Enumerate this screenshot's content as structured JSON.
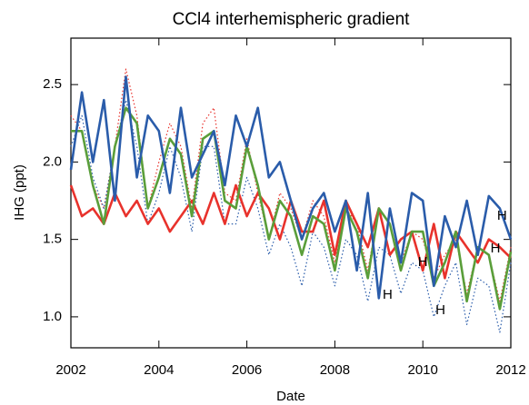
{
  "chart_data": {
    "type": "line",
    "title": "CCl4 interhemispheric  gradient",
    "xlabel": "Date",
    "ylabel": "IHG (ppt)",
    "xlim": [
      2002,
      2012
    ],
    "xticks": [
      2002,
      2004,
      2006,
      2008,
      2010,
      2012
    ],
    "ylim": [
      0.8,
      2.8
    ],
    "yticks": [
      {
        "value": 1,
        "label": "1.0"
      },
      {
        "value": 1.5,
        "label": "1.5"
      },
      {
        "value": 2,
        "label": "2.0"
      },
      {
        "value": 2.5,
        "label": "2.5"
      }
    ],
    "x": [
      2002,
      2002.25,
      2002.5,
      2002.75,
      2003,
      2003.25,
      2003.5,
      2003.75,
      2004,
      2004.25,
      2004.5,
      2004.75,
      2005,
      2005.25,
      2005.5,
      2005.75,
      2006,
      2006.25,
      2006.5,
      2006.75,
      2007,
      2007.25,
      2007.5,
      2007.75,
      2008,
      2008.25,
      2008.5,
      2008.75,
      2009,
      2009.25,
      2009.5,
      2009.75,
      2010,
      2010.25,
      2010.5,
      2010.75,
      2011,
      2011.25,
      2011.5,
      2011.75,
      2012
    ],
    "series": [
      {
        "color": "#e8322c",
        "dashed": true,
        "values": [
          2.3,
          2.2,
          1.85,
          1.7,
          2.1,
          2.6,
          2.3,
          1.7,
          2.0,
          2.25,
          2.1,
          1.7,
          2.25,
          2.35,
          1.8,
          1.75,
          2.15,
          1.8,
          1.5,
          1.8,
          1.7,
          1.5,
          1.75,
          1.65,
          1.35,
          1.7,
          1.6,
          1.3,
          1.7,
          1.6,
          1.35,
          1.55,
          1.5,
          1.25,
          1.4,
          1.5,
          1.15,
          1.45,
          1.4,
          1.1,
          1.45
        ]
      },
      {
        "color": "#2a5caa",
        "dashed": true,
        "values": [
          2.1,
          2.3,
          1.9,
          1.7,
          2.1,
          2.4,
          2.1,
          1.6,
          1.8,
          2.1,
          1.9,
          1.55,
          2.1,
          2.1,
          1.6,
          1.6,
          1.9,
          1.7,
          1.4,
          1.6,
          1.45,
          1.2,
          1.55,
          1.45,
          1.2,
          1.5,
          1.4,
          1.1,
          1.45,
          1.4,
          1.15,
          1.35,
          1.3,
          1.0,
          1.2,
          1.35,
          0.95,
          1.25,
          1.2,
          0.9,
          1.35
        ]
      },
      {
        "color": "#e8322c",
        "dashed": false,
        "values": [
          1.85,
          1.65,
          1.7,
          1.6,
          1.8,
          1.65,
          1.75,
          1.6,
          1.7,
          1.55,
          1.65,
          1.75,
          1.6,
          1.8,
          1.6,
          1.85,
          1.65,
          1.8,
          1.7,
          1.5,
          1.75,
          1.55,
          1.55,
          1.75,
          1.4,
          1.75,
          1.6,
          1.45,
          1.7,
          1.4,
          1.5,
          1.55,
          1.3,
          1.6,
          1.25,
          1.55,
          1.45,
          1.35,
          1.5,
          1.45,
          1.38
        ]
      },
      {
        "color": "#5a9e3a",
        "dashed": false,
        "values": [
          2.2,
          2.2,
          1.85,
          1.6,
          2.1,
          2.35,
          2.25,
          1.7,
          1.9,
          2.15,
          2.05,
          1.65,
          2.15,
          2.2,
          1.75,
          1.7,
          2.1,
          1.85,
          1.5,
          1.75,
          1.65,
          1.4,
          1.65,
          1.6,
          1.3,
          1.7,
          1.55,
          1.25,
          1.7,
          1.6,
          1.3,
          1.55,
          1.55,
          1.2,
          1.35,
          1.55,
          1.1,
          1.45,
          1.4,
          1.05,
          1.42
        ]
      },
      {
        "color": "#2a5caa",
        "dashed": false,
        "values": [
          1.95,
          2.45,
          2.0,
          2.4,
          1.75,
          2.55,
          1.9,
          2.3,
          2.2,
          1.8,
          2.35,
          1.9,
          2.05,
          2.2,
          1.85,
          2.3,
          2.1,
          2.35,
          1.9,
          2.0,
          1.75,
          1.5,
          1.7,
          1.8,
          1.55,
          1.75,
          1.3,
          1.8,
          1.12,
          1.7,
          1.35,
          1.8,
          1.75,
          1.2,
          1.65,
          1.45,
          1.75,
          1.4,
          1.78,
          1.7,
          1.5
        ]
      }
    ],
    "annotations": [
      {
        "text": "H",
        "x": 2009.2,
        "y": 1.14
      },
      {
        "text": "H",
        "x": 2010,
        "y": 1.35
      },
      {
        "text": "H",
        "x": 2010.4,
        "y": 1.04
      },
      {
        "text": "H",
        "x": 2011.65,
        "y": 1.44
      },
      {
        "text": "H",
        "x": 2011.8,
        "y": 1.65
      }
    ]
  }
}
